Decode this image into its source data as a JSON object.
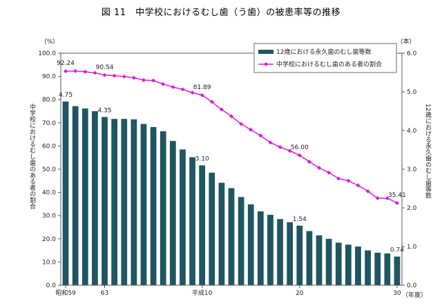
{
  "chart_data": {
    "type": "bar+line",
    "title": "図 11　中学校におけるむし歯（う歯）の被患率等の推移",
    "x_axis_label": "（年度）",
    "x_tick_labels": [
      "昭和59",
      "63",
      "平成10",
      "20",
      "30"
    ],
    "x_tick_indices": [
      0,
      4,
      14,
      24,
      34
    ],
    "left_axis": {
      "unit": "（%）",
      "label": "中学校におけるむし歯のある者の割合",
      "ylim": [
        0,
        100
      ],
      "ticks": [
        "0.0",
        "10.0",
        "20.0",
        "30.0",
        "40.0",
        "50.0",
        "60.0",
        "70.0",
        "80.0",
        "90.0",
        "100.0"
      ]
    },
    "right_axis": {
      "unit": "（本）",
      "label": "12歳における永久歯のむし歯等数",
      "ylim": [
        0,
        6
      ],
      "ticks": [
        "0.0",
        "1.0",
        "2.0",
        "3.0",
        "4.0",
        "5.0",
        "6.0"
      ]
    },
    "series": [
      {
        "name": "12歳における永久歯のむし歯等数",
        "type": "bar",
        "axis": "right",
        "color": "#1f5662",
        "values": [
          4.75,
          4.63,
          4.57,
          4.5,
          4.35,
          4.3,
          4.3,
          4.29,
          4.17,
          4.09,
          3.98,
          3.73,
          3.51,
          3.31,
          3.1,
          2.91,
          2.65,
          2.51,
          2.28,
          2.09,
          1.91,
          1.82,
          1.71,
          1.63,
          1.54,
          1.4,
          1.29,
          1.2,
          1.1,
          1.05,
          1.0,
          0.9,
          0.84,
          0.82,
          0.74
        ]
      },
      {
        "name": "中学校におけるむし歯のある者の割合",
        "type": "line",
        "axis": "left",
        "color": "#d81bd8",
        "values": [
          92.24,
          92.3,
          92.0,
          91.5,
          90.54,
          90.3,
          89.9,
          89.4,
          88.4,
          88.2,
          86.7,
          85.4,
          84.4,
          83.0,
          81.89,
          79.0,
          75.7,
          72.8,
          69.5,
          67.0,
          64.5,
          61.5,
          59.5,
          57.9,
          56.0,
          53.2,
          50.6,
          48.5,
          46.0,
          45.0,
          43.0,
          40.5,
          37.5,
          37.5,
          35.41
        ]
      }
    ],
    "data_labels": {
      "line": [
        {
          "index": 0,
          "text": "92.24"
        },
        {
          "index": 4,
          "text": "90.54"
        },
        {
          "index": 14,
          "text": "81.89"
        },
        {
          "index": 24,
          "text": "56.00"
        },
        {
          "index": 34,
          "text": "35.41"
        }
      ],
      "bar": [
        {
          "index": 0,
          "text": "4.75"
        },
        {
          "index": 4,
          "text": "4.35"
        },
        {
          "index": 14,
          "text": "3.10"
        },
        {
          "index": 24,
          "text": "1.54"
        },
        {
          "index": 34,
          "text": "0.74"
        }
      ]
    },
    "legend": {
      "position": "top-right",
      "entries": [
        "12歳における永久歯のむし歯等数",
        "中学校におけるむし歯のある者の割合"
      ]
    }
  }
}
